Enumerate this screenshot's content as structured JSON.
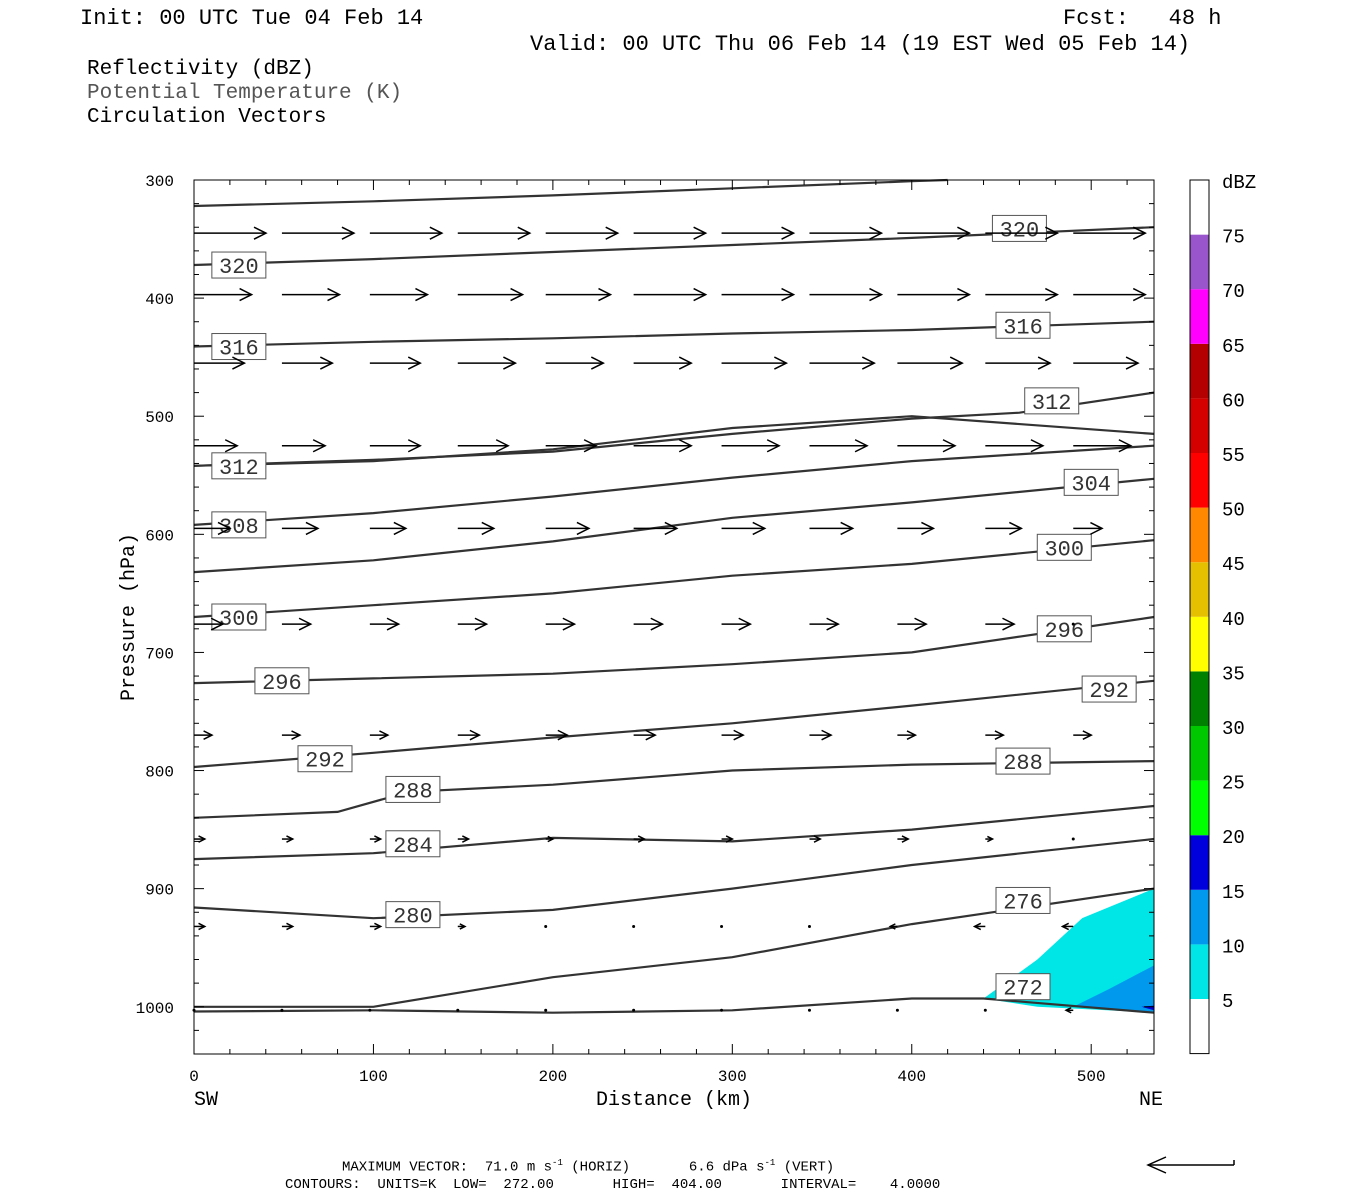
{
  "header": {
    "init": "Init: 00 UTC Tue 04 Feb 14",
    "fcst": "Fcst:   48 h",
    "valid": "Valid: 00 UTC Thu 06 Feb 14 (19 EST Wed 05 Feb 14)",
    "field1": "Reflectivity (dBZ)",
    "field2": "Potential Temperature (K)",
    "field3": "Circulation Vectors"
  },
  "footer": {
    "max_vector": "MAXIMUM VECTOR:  71.0 m s",
    "max_vector_exp": "-1",
    "horiz": " (HORIZ)",
    "vert_val": "6.6 dPa s",
    "vert_exp": "-1",
    "vert": " (VERT)",
    "contours": "CONTOURS:  UNITS=K  LOW=  272.00       HIGH=  404.00       INTERVAL=    4.0000"
  },
  "colors": {
    "contour": "#333333",
    "dbz_5": "#00e5e5",
    "dbz_10": "#0099ee",
    "dbz_15": "#0000dd"
  },
  "chart_data": {
    "type": "cross-section",
    "xlabel": "Distance (km)",
    "ylabel": "Pressure (hPa)",
    "xlim": [
      0,
      535
    ],
    "ylim": [
      1040,
      300
    ],
    "x_ticks": [
      0,
      100,
      200,
      300,
      400,
      500
    ],
    "y_ticks": [
      300,
      400,
      500,
      600,
      700,
      800,
      900,
      1000
    ],
    "x_end_labels": {
      "left": "SW",
      "right": "NE"
    },
    "colorbar": {
      "unit": "dBZ",
      "levels": [
        5,
        10,
        15,
        20,
        25,
        30,
        35,
        40,
        45,
        50,
        55,
        60,
        65,
        70,
        75
      ],
      "colors": [
        "#ffffff",
        "#00e5e5",
        "#0099ee",
        "#0000dd",
        "#00ff00",
        "#00c800",
        "#008000",
        "#ffff00",
        "#e5c000",
        "#ff8800",
        "#ff0000",
        "#d40000",
        "#b40000",
        "#ff00ff",
        "#9955cc",
        "#ffffff"
      ]
    },
    "contours": [
      {
        "label": "320",
        "points": [
          [
            0,
            322
          ],
          [
            100,
            318
          ],
          [
            200,
            313
          ],
          [
            300,
            307
          ],
          [
            400,
            301
          ],
          [
            420,
            300
          ]
        ],
        "label_at": []
      },
      {
        "label": "320",
        "points": [
          [
            0,
            372
          ],
          [
            100,
            367
          ],
          [
            200,
            361
          ],
          [
            300,
            355
          ],
          [
            400,
            349
          ],
          [
            535,
            340
          ]
        ],
        "label_at": [
          [
            25,
            372
          ],
          [
            460,
            341
          ]
        ]
      },
      {
        "label": "316",
        "points": [
          [
            0,
            441
          ],
          [
            100,
            437
          ],
          [
            200,
            434
          ],
          [
            300,
            430
          ],
          [
            400,
            427
          ],
          [
            535,
            420
          ]
        ],
        "label_at": [
          [
            25,
            441
          ],
          [
            462,
            423
          ]
        ]
      },
      {
        "label": "312",
        "points": [
          [
            0,
            542
          ],
          [
            100,
            537
          ],
          [
            200,
            530
          ],
          [
            300,
            515
          ],
          [
            400,
            502
          ],
          [
            460,
            497
          ],
          [
            535,
            480
          ]
        ],
        "label_at": [
          [
            478,
            487
          ]
        ]
      },
      {
        "label": "312",
        "points": [
          [
            0,
            542
          ],
          [
            100,
            538
          ],
          [
            200,
            528
          ],
          [
            300,
            510
          ],
          [
            400,
            500
          ],
          [
            535,
            515
          ]
        ],
        "label_at": [
          [
            25,
            542
          ]
        ]
      },
      {
        "label": "308",
        "points": [
          [
            0,
            592
          ],
          [
            100,
            582
          ],
          [
            200,
            568
          ],
          [
            300,
            552
          ],
          [
            400,
            538
          ],
          [
            535,
            525
          ]
        ],
        "label_at": [
          [
            25,
            592
          ]
        ]
      },
      {
        "label": "304",
        "points": [
          [
            0,
            632
          ],
          [
            100,
            622
          ],
          [
            200,
            606
          ],
          [
            300,
            586
          ],
          [
            400,
            573
          ],
          [
            535,
            553
          ]
        ],
        "label_at": [
          [
            500,
            556
          ]
        ]
      },
      {
        "label": "300",
        "points": [
          [
            0,
            670
          ],
          [
            100,
            660
          ],
          [
            200,
            650
          ],
          [
            300,
            635
          ],
          [
            400,
            625
          ],
          [
            535,
            605
          ]
        ],
        "label_at": [
          [
            25,
            670
          ],
          [
            485,
            611
          ]
        ]
      },
      {
        "label": "296",
        "points": [
          [
            0,
            726
          ],
          [
            100,
            722
          ],
          [
            200,
            718
          ],
          [
            300,
            710
          ],
          [
            400,
            700
          ],
          [
            535,
            670
          ]
        ],
        "label_at": [
          [
            49,
            724
          ],
          [
            485,
            680
          ]
        ]
      },
      {
        "label": "292",
        "points": [
          [
            0,
            797
          ],
          [
            100,
            785
          ],
          [
            200,
            772
          ],
          [
            300,
            760
          ],
          [
            400,
            745
          ],
          [
            535,
            724
          ]
        ],
        "label_at": [
          [
            73,
            790
          ],
          [
            510,
            731
          ]
        ]
      },
      {
        "label": "288",
        "points": [
          [
            0,
            840
          ],
          [
            80,
            835
          ],
          [
            120,
            818
          ],
          [
            200,
            812
          ],
          [
            300,
            800
          ],
          [
            400,
            795
          ],
          [
            535,
            792
          ]
        ],
        "label_at": [
          [
            122,
            816
          ],
          [
            462,
            792
          ]
        ]
      },
      {
        "label": "284",
        "points": [
          [
            0,
            875
          ],
          [
            100,
            870
          ],
          [
            200,
            857
          ],
          [
            300,
            860
          ],
          [
            400,
            850
          ],
          [
            535,
            830
          ]
        ],
        "label_at": [
          [
            122,
            862
          ]
        ]
      },
      {
        "label": "280",
        "points": [
          [
            0,
            916
          ],
          [
            100,
            925
          ],
          [
            200,
            918
          ],
          [
            300,
            900
          ],
          [
            400,
            880
          ],
          [
            535,
            858
          ]
        ],
        "label_at": [
          [
            122,
            922
          ]
        ]
      },
      {
        "label": "276",
        "points": [
          [
            0,
            1000
          ],
          [
            100,
            1000
          ],
          [
            200,
            975
          ],
          [
            300,
            958
          ],
          [
            400,
            930
          ],
          [
            535,
            900
          ]
        ],
        "label_at": [
          [
            462,
            910
          ]
        ]
      },
      {
        "label": "272",
        "points": [
          [
            0,
            1004
          ],
          [
            100,
            1003
          ],
          [
            200,
            1005
          ],
          [
            300,
            1003
          ],
          [
            400,
            993
          ],
          [
            440,
            993
          ],
          [
            535,
            1005
          ]
        ],
        "label_at": [
          [
            462,
            983
          ]
        ]
      }
    ],
    "vectors": [
      {
        "p": 345,
        "u": [
          1.0,
          1.0,
          1.0,
          1.0,
          1.0,
          1.0,
          1.0,
          1.0,
          1.0,
          1.0,
          1.0
        ],
        "w": 0
      },
      {
        "p": 397,
        "u": [
          0.8,
          0.8,
          0.8,
          0.9,
          0.9,
          1.0,
          1.0,
          1.0,
          1.0,
          1.0,
          1.0
        ],
        "w": 0
      },
      {
        "p": 455,
        "u": [
          0.7,
          0.7,
          0.7,
          0.8,
          0.8,
          0.8,
          0.9,
          0.9,
          0.9,
          0.9,
          0.9
        ],
        "w": 0
      },
      {
        "p": 525,
        "u": [
          0.6,
          0.6,
          0.7,
          0.7,
          0.7,
          0.8,
          0.8,
          0.8,
          0.8,
          0.8,
          0.8
        ],
        "w": 0
      },
      {
        "p": 595,
        "u": [
          0.5,
          0.5,
          0.5,
          0.5,
          0.6,
          0.6,
          0.6,
          0.6,
          0.5,
          0.5,
          0.4
        ],
        "w": 0
      },
      {
        "p": 676,
        "u": [
          0.4,
          0.4,
          0.4,
          0.4,
          0.4,
          0.4,
          0.4,
          0.4,
          0.4,
          0.4,
          0.0
        ],
        "w": 0
      },
      {
        "p": 770,
        "u": [
          0.25,
          0.25,
          0.25,
          0.3,
          0.3,
          0.3,
          0.3,
          0.3,
          0.25,
          0.25,
          0.25
        ],
        "w": 0
      },
      {
        "p": 858,
        "u": [
          0.15,
          0.15,
          0.15,
          0.15,
          0.1,
          0.15,
          0.15,
          0.15,
          0.15,
          0.1,
          0.05
        ],
        "w": 0
      },
      {
        "p": 932,
        "u": [
          0.15,
          0.15,
          0.15,
          0.1,
          0.05,
          0.05,
          0.02,
          -0.05,
          -0.1,
          -0.15,
          -0.15
        ],
        "w": 0
      },
      {
        "p": 1003,
        "u": [
          0.05,
          0.05,
          0.05,
          0.05,
          0.02,
          0.02,
          0.02,
          0.05,
          0.05,
          -0.05,
          -0.1
        ],
        "w": 0
      }
    ]
  }
}
